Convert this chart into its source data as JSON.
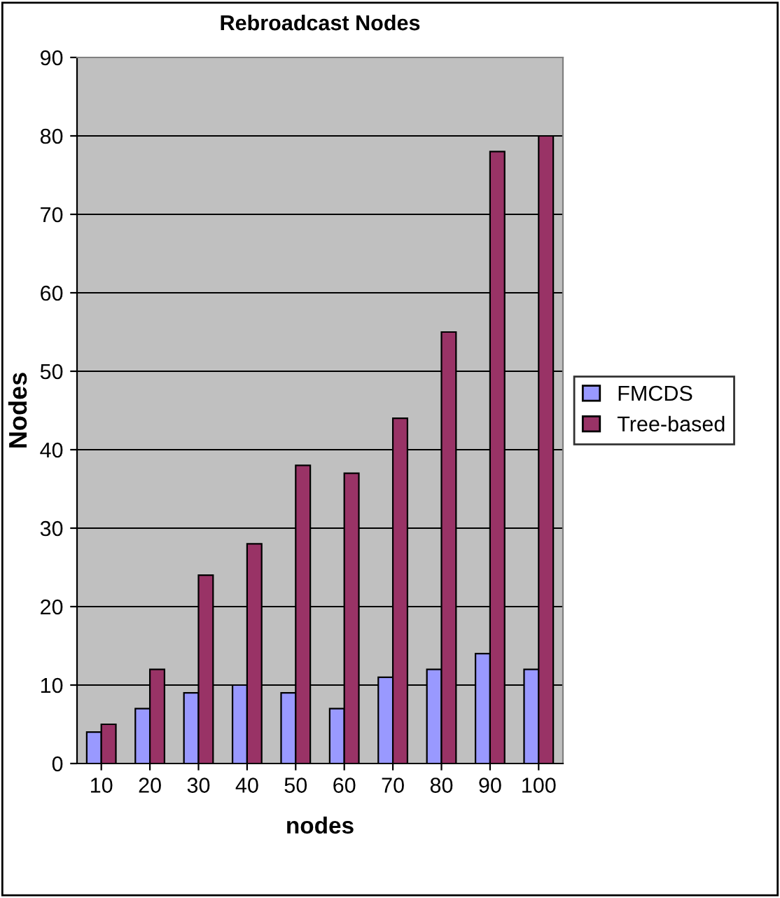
{
  "chart_data": {
    "type": "bar",
    "title": "Rebroadcast Nodes",
    "xlabel": "nodes",
    "ylabel": "Nodes",
    "categories": [
      "10",
      "20",
      "30",
      "40",
      "50",
      "60",
      "70",
      "80",
      "90",
      "100"
    ],
    "series": [
      {
        "name": "FMCDS",
        "color": "#9999ff",
        "values": [
          4,
          7,
          9,
          10,
          9,
          7,
          11,
          12,
          14,
          12
        ]
      },
      {
        "name": "Tree-based",
        "color": "#993366",
        "values": [
          5,
          12,
          24,
          28,
          38,
          37,
          44,
          55,
          78,
          80
        ]
      }
    ],
    "ylim": [
      0,
      90
    ],
    "yticks": [
      0,
      10,
      20,
      30,
      40,
      50,
      60,
      70,
      80,
      90
    ],
    "grid": "y",
    "legend": "right"
  }
}
